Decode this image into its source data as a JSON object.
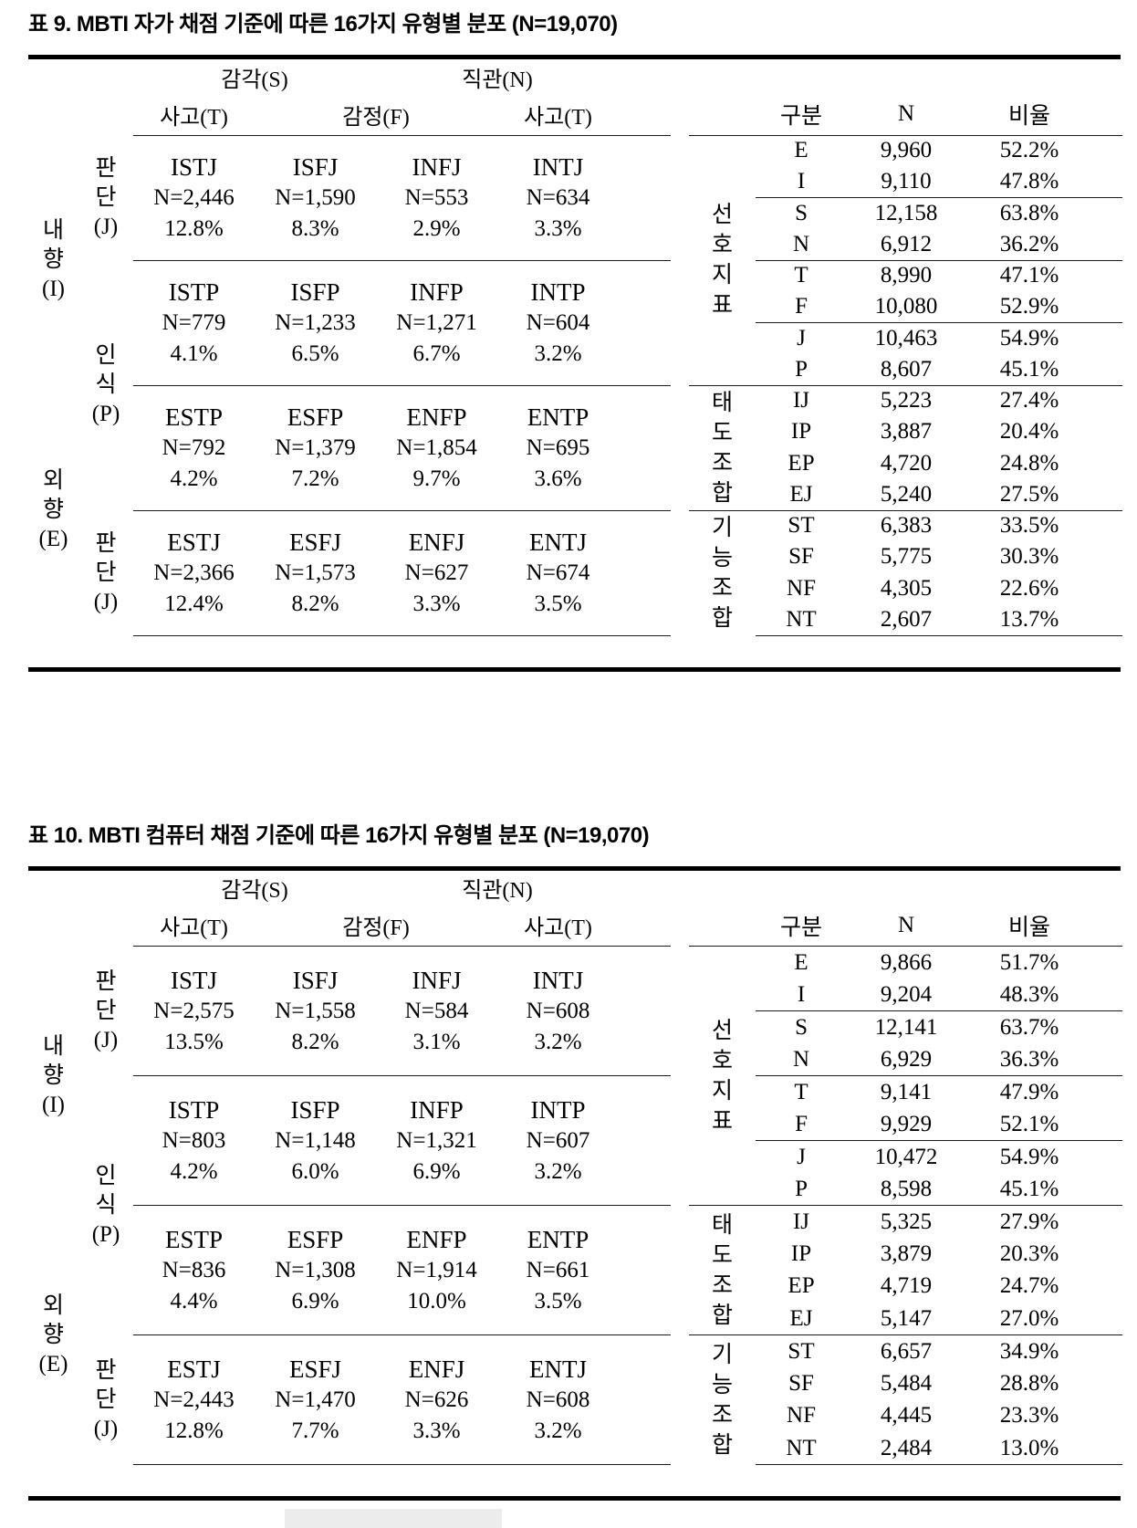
{
  "tables": [
    {
      "title": "표 9. MBTI 자가 채점 기준에 따른 16가지 유형별 분포 (N=19,070)",
      "grid": {
        "group_headers": [
          "감각(S)",
          "직관(N)"
        ],
        "col_headers": [
          "사고(T)",
          "감정(F)",
          "사고(T)"
        ],
        "outer_labels": [
          "내\n향\n(I)",
          "외\n향\n(E)"
        ],
        "side_labels": [
          "판\n단\n(J)",
          "인\n식\n(P)",
          "판\n단\n(J)"
        ],
        "rows": [
          [
            {
              "t": "ISTJ",
              "n": "N=2,446",
              "p": "12.8%"
            },
            {
              "t": "ISFJ",
              "n": "N=1,590",
              "p": "8.3%"
            },
            {
              "t": "INFJ",
              "n": "N=553",
              "p": "2.9%"
            },
            {
              "t": "INTJ",
              "n": "N=634",
              "p": "3.3%"
            }
          ],
          [
            {
              "t": "ISTP",
              "n": "N=779",
              "p": "4.1%"
            },
            {
              "t": "ISFP",
              "n": "N=1,233",
              "p": "6.5%"
            },
            {
              "t": "INFP",
              "n": "N=1,271",
              "p": "6.7%"
            },
            {
              "t": "INTP",
              "n": "N=604",
              "p": "3.2%"
            }
          ],
          [
            {
              "t": "ESTP",
              "n": "N=792",
              "p": "4.2%"
            },
            {
              "t": "ESFP",
              "n": "N=1,379",
              "p": "7.2%"
            },
            {
              "t": "ENFP",
              "n": "N=1,854",
              "p": "9.7%"
            },
            {
              "t": "ENTP",
              "n": "N=695",
              "p": "3.6%"
            }
          ],
          [
            {
              "t": "ESTJ",
              "n": "N=2,366",
              "p": "12.4%"
            },
            {
              "t": "ESFJ",
              "n": "N=1,573",
              "p": "8.2%"
            },
            {
              "t": "ENFJ",
              "n": "N=627",
              "p": "3.3%"
            },
            {
              "t": "ENTJ",
              "n": "N=674",
              "p": "3.5%"
            }
          ]
        ]
      },
      "summary": {
        "col_headers": [
          "구분",
          "N",
          "비율"
        ],
        "group_labels": [
          "선\n호\n지\n표",
          "태\n도\n조\n합",
          "기\n능\n조\n합"
        ],
        "rows": [
          [
            "E",
            "9,960",
            "52.2%"
          ],
          [
            "I",
            "9,110",
            "47.8%"
          ],
          [
            "S",
            "12,158",
            "63.8%"
          ],
          [
            "N",
            "6,912",
            "36.2%"
          ],
          [
            "T",
            "8,990",
            "47.1%"
          ],
          [
            "F",
            "10,080",
            "52.9%"
          ],
          [
            "J",
            "10,463",
            "54.9%"
          ],
          [
            "P",
            "8,607",
            "45.1%"
          ],
          [
            "IJ",
            "5,223",
            "27.4%"
          ],
          [
            "IP",
            "3,887",
            "20.4%"
          ],
          [
            "EP",
            "4,720",
            "24.8%"
          ],
          [
            "EJ",
            "5,240",
            "27.5%"
          ],
          [
            "ST",
            "6,383",
            "33.5%"
          ],
          [
            "SF",
            "5,775",
            "30.3%"
          ],
          [
            "NF",
            "4,305",
            "22.6%"
          ],
          [
            "NT",
            "2,607",
            "13.7%"
          ]
        ]
      }
    },
    {
      "title": "표 10. MBTI 컴퓨터 채점 기준에 따른 16가지 유형별 분포 (N=19,070)",
      "grid": {
        "group_headers": [
          "감각(S)",
          "직관(N)"
        ],
        "col_headers": [
          "사고(T)",
          "감정(F)",
          "사고(T)"
        ],
        "outer_labels": [
          "내\n향\n(I)",
          "외\n향\n(E)"
        ],
        "side_labels": [
          "판\n단\n(J)",
          "인\n식\n(P)",
          "판\n단\n(J)"
        ],
        "rows": [
          [
            {
              "t": "ISTJ",
              "n": "N=2,575",
              "p": "13.5%"
            },
            {
              "t": "ISFJ",
              "n": "N=1,558",
              "p": "8.2%"
            },
            {
              "t": "INFJ",
              "n": "N=584",
              "p": "3.1%"
            },
            {
              "t": "INTJ",
              "n": "N=608",
              "p": "3.2%"
            }
          ],
          [
            {
              "t": "ISTP",
              "n": "N=803",
              "p": "4.2%"
            },
            {
              "t": "ISFP",
              "n": "N=1,148",
              "p": "6.0%"
            },
            {
              "t": "INFP",
              "n": "N=1,321",
              "p": "6.9%"
            },
            {
              "t": "INTP",
              "n": "N=607",
              "p": "3.2%"
            }
          ],
          [
            {
              "t": "ESTP",
              "n": "N=836",
              "p": "4.4%"
            },
            {
              "t": "ESFP",
              "n": "N=1,308",
              "p": "6.9%"
            },
            {
              "t": "ENFP",
              "n": "N=1,914",
              "p": "10.0%"
            },
            {
              "t": "ENTP",
              "n": "N=661",
              "p": "3.5%"
            }
          ],
          [
            {
              "t": "ESTJ",
              "n": "N=2,443",
              "p": "12.8%"
            },
            {
              "t": "ESFJ",
              "n": "N=1,470",
              "p": "7.7%"
            },
            {
              "t": "ENFJ",
              "n": "N=626",
              "p": "3.3%"
            },
            {
              "t": "ENTJ",
              "n": "N=608",
              "p": "3.2%"
            }
          ]
        ]
      },
      "summary": {
        "col_headers": [
          "구분",
          "N",
          "비율"
        ],
        "group_labels": [
          "선\n호\n지\n표",
          "태\n도\n조\n합",
          "기\n능\n조\n합"
        ],
        "rows": [
          [
            "E",
            "9,866",
            "51.7%"
          ],
          [
            "I",
            "9,204",
            "48.3%"
          ],
          [
            "S",
            "12,141",
            "63.7%"
          ],
          [
            "N",
            "6,929",
            "36.3%"
          ],
          [
            "T",
            "9,141",
            "47.9%"
          ],
          [
            "F",
            "9,929",
            "52.1%"
          ],
          [
            "J",
            "10,472",
            "54.9%"
          ],
          [
            "P",
            "8,598",
            "45.1%"
          ],
          [
            "IJ",
            "5,325",
            "27.9%"
          ],
          [
            "IP",
            "3,879",
            "20.3%"
          ],
          [
            "EP",
            "4,719",
            "24.7%"
          ],
          [
            "EJ",
            "5,147",
            "27.0%"
          ],
          [
            "ST",
            "6,657",
            "34.9%"
          ],
          [
            "SF",
            "5,484",
            "28.8%"
          ],
          [
            "NF",
            "4,445",
            "23.3%"
          ],
          [
            "NT",
            "2,484",
            "13.0%"
          ]
        ]
      }
    }
  ]
}
